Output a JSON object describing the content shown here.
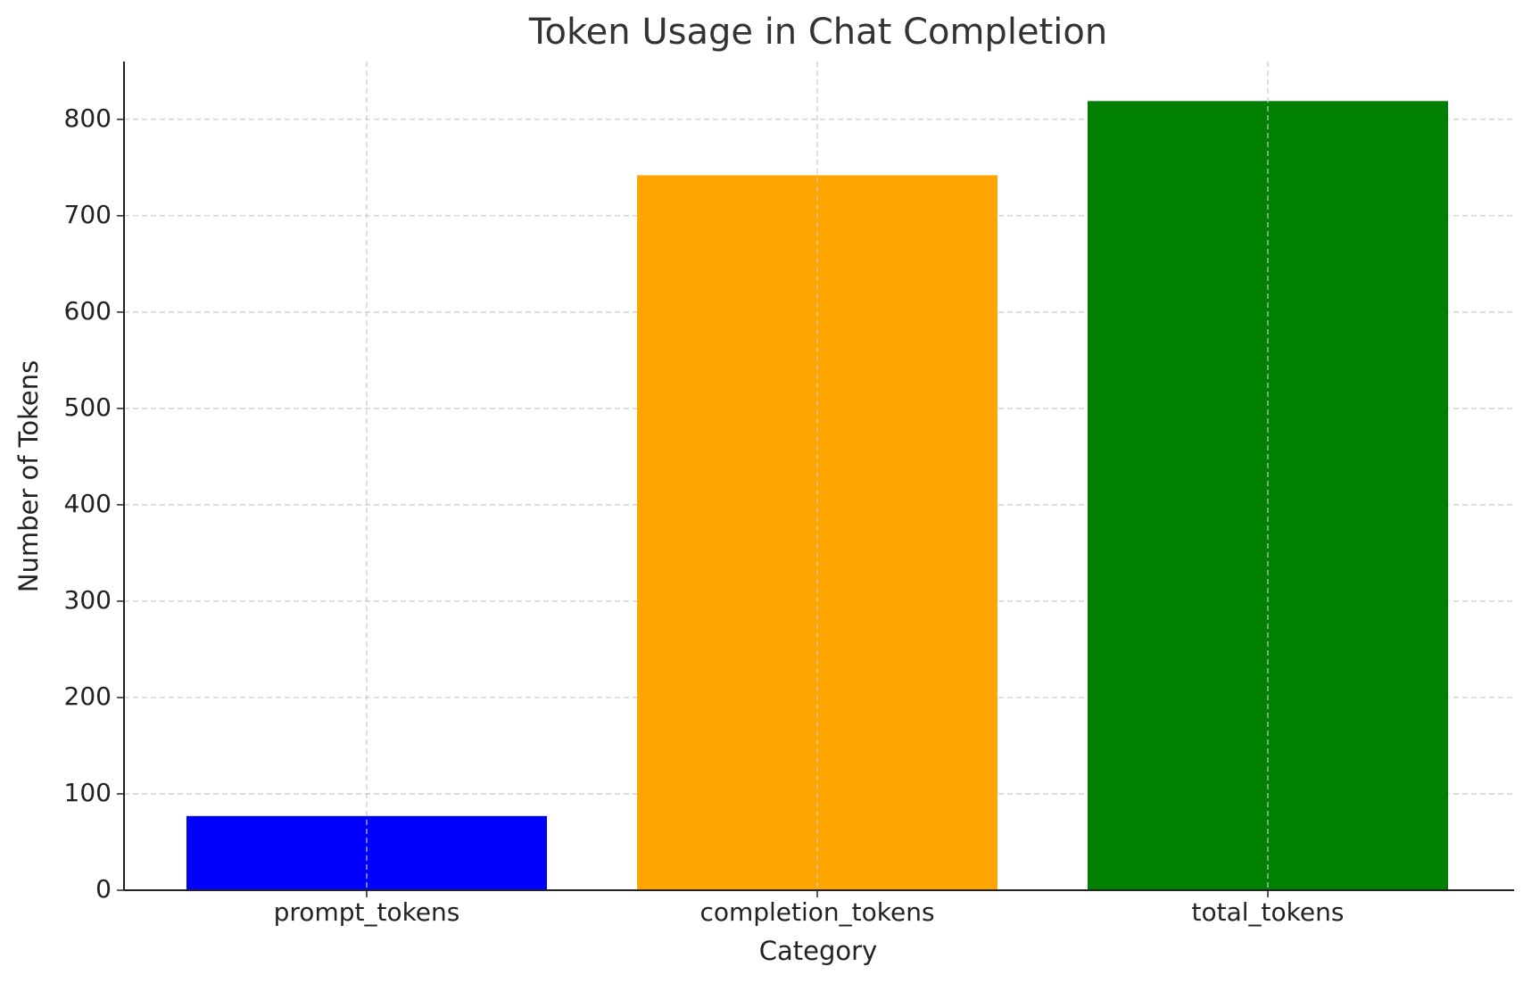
{
  "chart_data": {
    "type": "bar",
    "title": "Token Usage in Chat Completion",
    "x_label": "Category",
    "y_label": "Number of Tokens",
    "categories": [
      "prompt_tokens",
      "completion_tokens",
      "total_tokens"
    ],
    "values": [
      77,
      742,
      819
    ],
    "colors": [
      "#0000ff",
      "#ffa500",
      "#008000"
    ],
    "ylim": [
      0,
      860
    ],
    "yticks": [
      0,
      100,
      200,
      300,
      400,
      500,
      600,
      700,
      800
    ],
    "grid": true
  }
}
